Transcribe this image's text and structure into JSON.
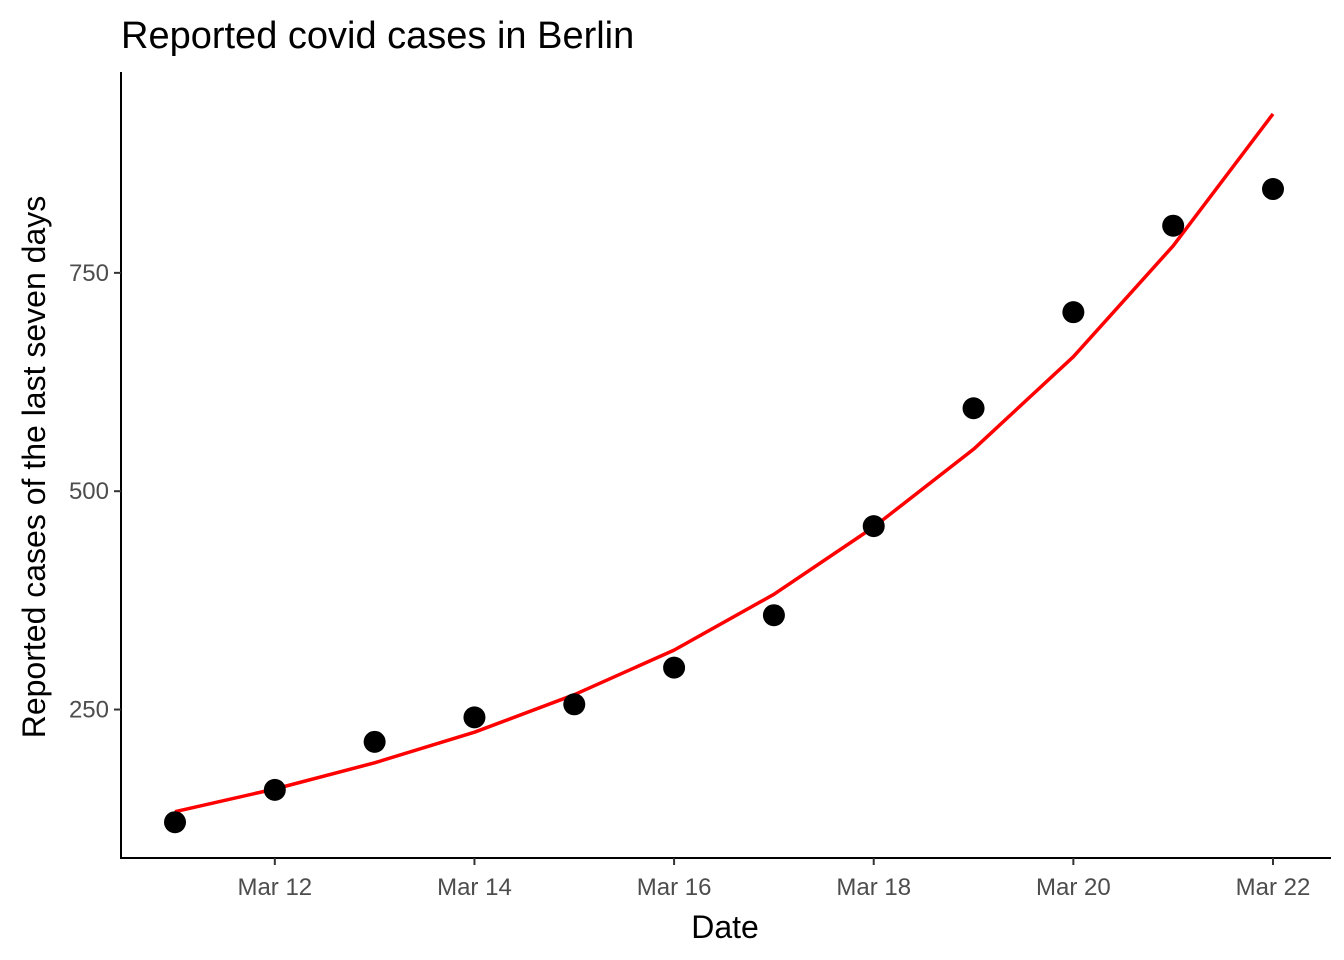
{
  "chart_data": {
    "type": "scatter",
    "title": "Reported covid cases in Berlin",
    "xlabel": "Date",
    "ylabel": "Reported cases of the last seven days",
    "x": [
      "2020-03-11",
      "2020-03-12",
      "2020-03-13",
      "2020-03-14",
      "2020-03-15",
      "2020-03-16",
      "2020-03-17",
      "2020-03-18",
      "2020-03-19",
      "2020-03-20",
      "2020-03-21",
      "2020-03-22"
    ],
    "x_tick_labels": [
      "Mar 12",
      "Mar 14",
      "Mar 16",
      "Mar 18",
      "Mar 20",
      "Mar 22"
    ],
    "y_ticks": [
      250,
      500,
      750
    ],
    "ylim": [
      80,
      980
    ],
    "grid": false,
    "legend": "none",
    "series": [
      {
        "kind": "points",
        "color": "#000000",
        "values": [
          121,
          158,
          213,
          241,
          256,
          298,
          358,
          460,
          595,
          705,
          804,
          846
        ]
      },
      {
        "kind": "fitted-line",
        "color": "#ff0000",
        "values": [
          133,
          159,
          189,
          224,
          267,
          318,
          382,
          459,
          548,
          654,
          781,
          932
        ]
      }
    ]
  }
}
